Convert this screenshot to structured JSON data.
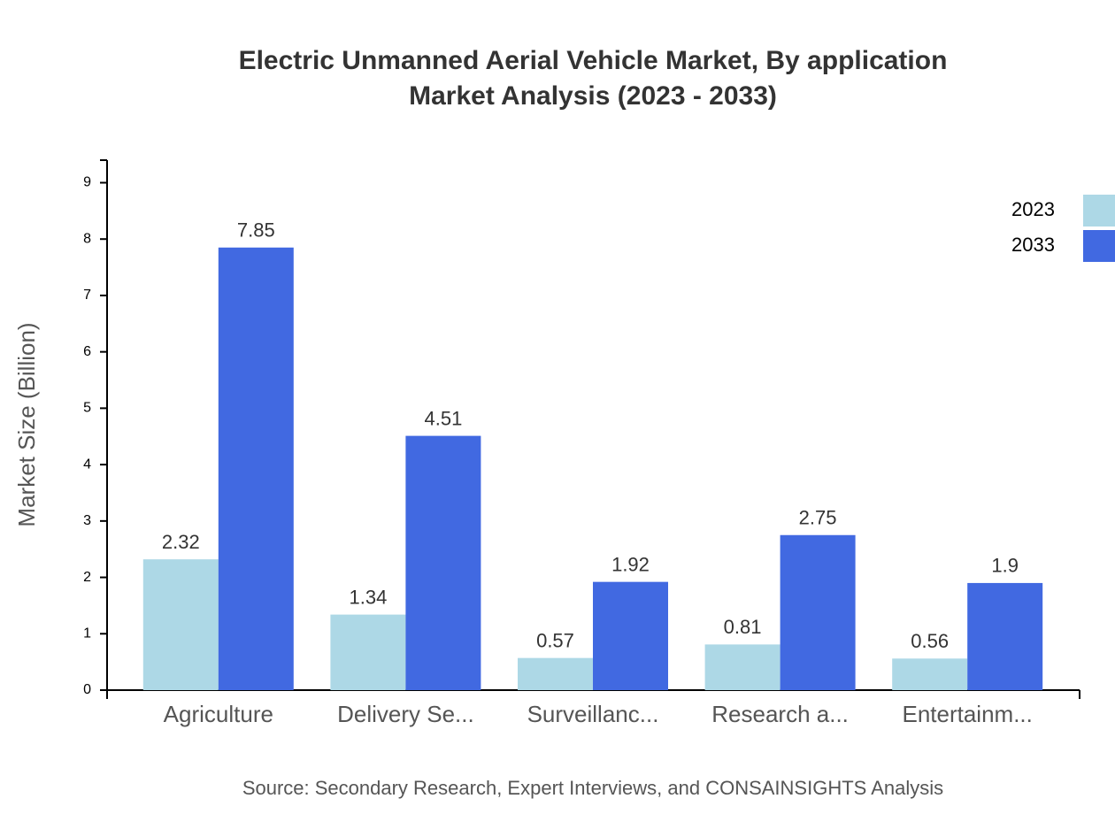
{
  "chart_data": {
    "type": "bar",
    "title": "Electric Unmanned Aerial Vehicle Market, By application",
    "subtitle": "Market Analysis (2023 - 2033)",
    "y_label": "Market Size (Billion)",
    "source": "Source: Secondary Research, Expert Interviews, and CONSAINSIGHTS Analysis",
    "categories": [
      "Agriculture",
      "Delivery Se...",
      "Surveillanc...",
      "Research a...",
      "Entertainm..."
    ],
    "series": [
      {
        "name": "2023",
        "color": "#add8e6",
        "values": [
          2.32,
          1.34,
          0.57,
          0.81,
          0.56
        ]
      },
      {
        "name": "2033",
        "color": "#4169e1",
        "values": [
          7.85,
          4.51,
          1.92,
          2.75,
          1.9
        ]
      }
    ],
    "ylim": [
      0,
      9.4
    ],
    "yticks": [
      0,
      1,
      2,
      3,
      4,
      5,
      6,
      7,
      8,
      9
    ],
    "legend": "top-right"
  }
}
